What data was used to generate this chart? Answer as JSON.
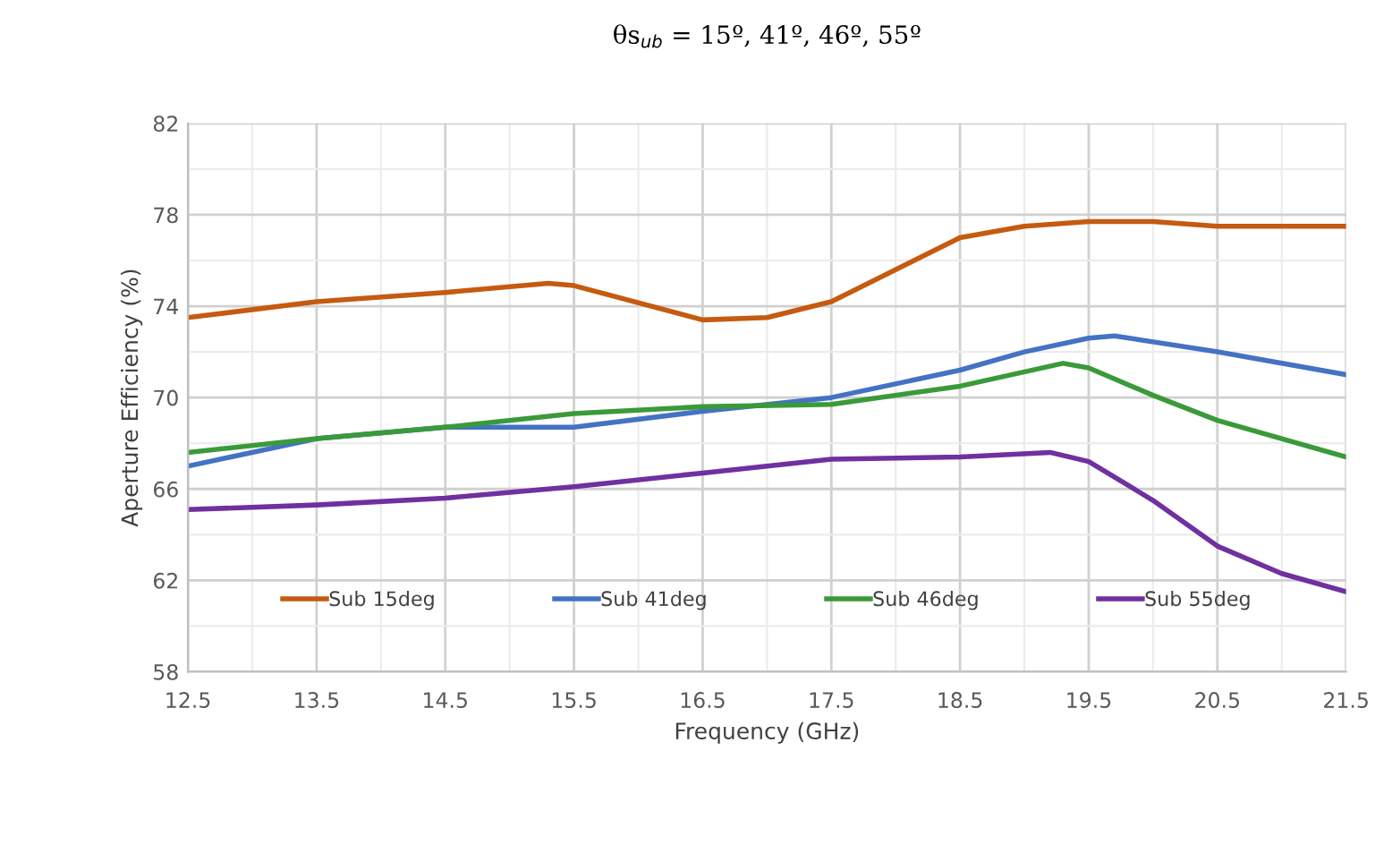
{
  "chart_data": {
    "type": "line",
    "title": "θs$_{ub}$ = 15º, 41º, 46º, 55º",
    "xlabel": "Frequency (GHz)",
    "ylabel": "Aperture Efficiency (%)",
    "xlim": [
      12.5,
      21.5
    ],
    "xticks": [
      12.5,
      13.5,
      14.5,
      15.5,
      16.5,
      17.5,
      18.5,
      19.5,
      20.5,
      21.5
    ],
    "ylim": [
      58,
      82
    ],
    "yticks": [
      58,
      62,
      66,
      70,
      74,
      78,
      82
    ],
    "grid": true,
    "legend": "bottom",
    "line_style": "solid",
    "marker": "none",
    "series": [
      {
        "name": "Sub 15deg",
        "color": "#c55a11",
        "x": [
          12.5,
          13.5,
          14.5,
          15.3,
          15.5,
          16.5,
          17.0,
          17.5,
          18.0,
          18.5,
          19.0,
          19.5,
          20.0,
          20.5,
          21.5
        ],
        "values": [
          73.5,
          74.2,
          74.6,
          75.0,
          74.9,
          73.4,
          73.5,
          74.2,
          75.6,
          77.0,
          77.5,
          77.7,
          77.7,
          77.5,
          77.5
        ]
      },
      {
        "name": "Sub 41deg",
        "color": "#4472c4",
        "x": [
          12.5,
          13.5,
          14.5,
          15.5,
          16.5,
          17.5,
          18.5,
          19.0,
          19.5,
          19.7,
          20.5,
          21.5
        ],
        "values": [
          67.0,
          68.2,
          68.7,
          68.7,
          69.4,
          70.0,
          71.2,
          72.0,
          72.6,
          72.7,
          72.0,
          71.0
        ]
      },
      {
        "name": "Sub 46deg",
        "color": "#3a9a3a",
        "x": [
          12.5,
          13.5,
          14.5,
          15.5,
          16.5,
          17.5,
          18.5,
          19.3,
          19.5,
          20.0,
          20.5,
          21.5
        ],
        "values": [
          67.6,
          68.2,
          68.7,
          69.3,
          69.6,
          69.7,
          70.5,
          71.5,
          71.3,
          70.1,
          69.0,
          67.4
        ]
      },
      {
        "name": "Sub 55deg",
        "color": "#7030a0",
        "x": [
          12.5,
          13.5,
          14.5,
          15.5,
          16.5,
          17.5,
          18.5,
          19.2,
          19.5,
          20.0,
          20.5,
          21.0,
          21.5
        ],
        "values": [
          65.1,
          65.3,
          65.6,
          66.1,
          66.7,
          67.3,
          67.4,
          67.6,
          67.2,
          65.5,
          63.5,
          62.3,
          61.5
        ]
      }
    ]
  }
}
